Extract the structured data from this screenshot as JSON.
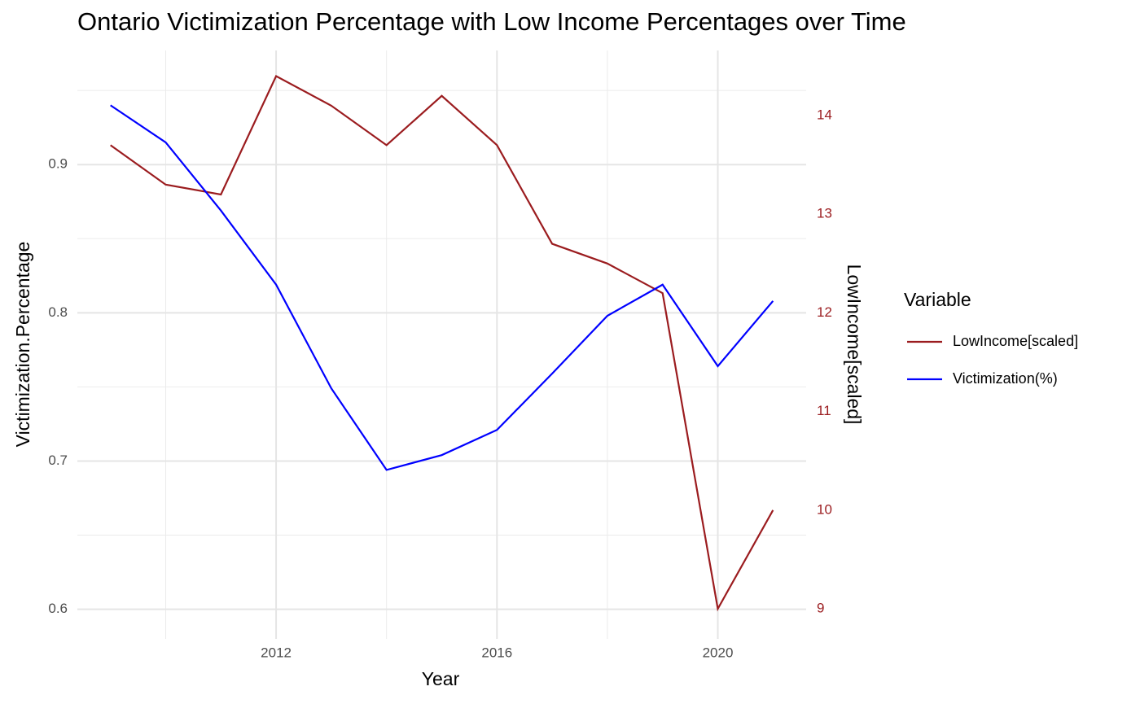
{
  "chart_data": {
    "type": "line",
    "title": "Ontario Victimization Percentage with Low Income Percentages over Time",
    "x_label": "Year",
    "y_label": "Victimization.Percentage",
    "y2_label": "LowIncome[scaled]",
    "y2_color": "#9b1c1f",
    "legend_title": "Variable",
    "legend_position": "right",
    "x": [
      2009,
      2010,
      2011,
      2012,
      2013,
      2014,
      2015,
      2016,
      2017,
      2018,
      2019,
      2020,
      2021
    ],
    "series": [
      {
        "name": "LowIncome[scaled]",
        "color": "#9b1c1f",
        "axis": "y2",
        "values": [
          13.7,
          13.3,
          13.2,
          14.4,
          14.1,
          13.7,
          14.2,
          13.7,
          12.7,
          12.5,
          12.2,
          9.0,
          10.0
        ]
      },
      {
        "name": "Victimization(%)",
        "color": "#0000ff",
        "values": [
          0.94,
          0.915,
          0.869,
          0.819,
          0.749,
          0.694,
          0.704,
          0.721,
          0.759,
          0.798,
          0.819,
          0.764,
          0.808
        ]
      }
    ],
    "xlim": [
      2008.4,
      2021.6
    ],
    "xticks": [
      2012,
      2016,
      2020
    ],
    "xminorticks": [
      2010,
      2014,
      2018
    ],
    "ylim": [
      0.58,
      0.977
    ],
    "yticks": [
      0.6,
      0.7,
      0.8,
      0.9
    ],
    "yminorticks": [
      0.65,
      0.75,
      0.85,
      0.95
    ],
    "y2lim": [
      8.695,
      14.66
    ],
    "y2ticks": [
      9,
      10,
      11,
      12,
      13,
      14
    ],
    "grid": true
  }
}
